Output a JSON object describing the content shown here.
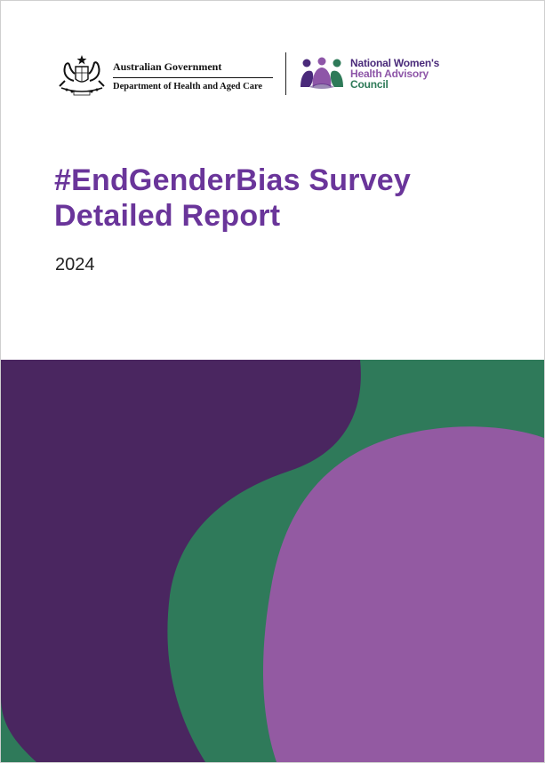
{
  "header": {
    "government": {
      "emblem_icon": "commonwealth-coat-of-arms",
      "line1": "Australian Government",
      "line2": "Department of Health and Aged Care"
    },
    "council": {
      "logo_icon": "three-people-icon",
      "name_line1": "National Women's",
      "name_line2": "Health Advisory",
      "name_line3": "Council"
    }
  },
  "title_line1": "#EndGenderBias Survey",
  "title_line2": "Detailed Report",
  "year": "2024",
  "colors": {
    "title": "#6a359a",
    "dark_purple": "#4a2660",
    "green": "#2f7a5a",
    "light_purple": "#935aa2"
  }
}
